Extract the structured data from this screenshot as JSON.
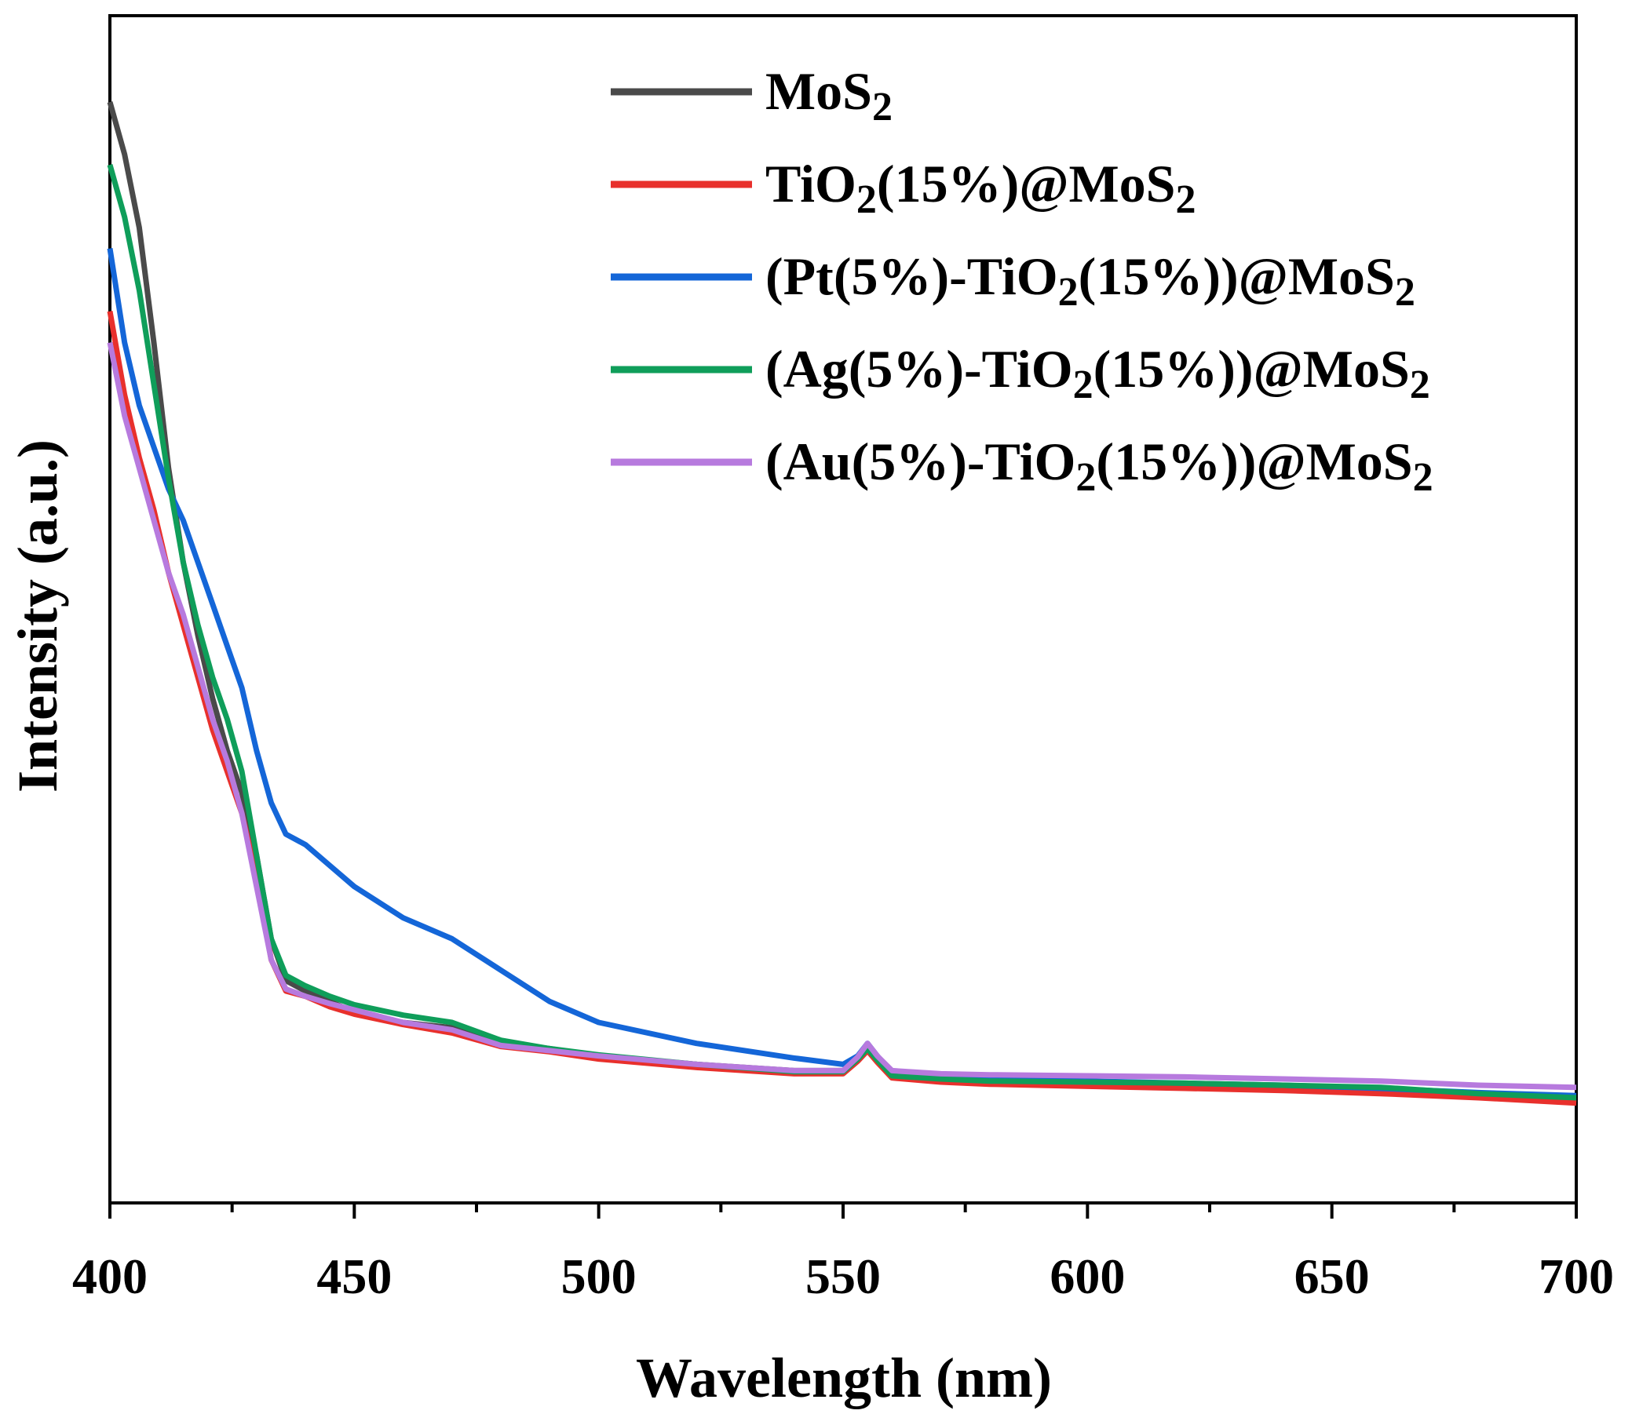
{
  "chart_data": {
    "type": "line",
    "xlabel": "Wavelength (nm)",
    "ylabel": "Intensity (a.u.)",
    "xlim": [
      400,
      700
    ],
    "ylim": [
      0,
      1
    ],
    "x_ticks": [
      400,
      450,
      500,
      550,
      600,
      650,
      700
    ],
    "y_ticks_shown": false,
    "legend_position": "top-right",
    "series": [
      {
        "name": "MoS2",
        "label_parts": [
          [
            "MoS",
            false
          ],
          [
            "2",
            true
          ]
        ],
        "color": "#4a4a4a",
        "x": [
          400,
          403,
          406,
          409,
          412,
          415,
          418,
          421,
          424,
          427,
          430,
          433,
          436,
          440,
          445,
          450,
          460,
          470,
          480,
          490,
          500,
          520,
          540,
          550,
          553,
          555,
          557,
          560,
          570,
          580,
          600,
          620,
          640,
          660,
          680,
          700
        ],
        "y": [
          1.0,
          0.95,
          0.88,
          0.77,
          0.65,
          0.56,
          0.49,
          0.43,
          0.38,
          0.34,
          0.28,
          0.2,
          0.16,
          0.15,
          0.14,
          0.13,
          0.12,
          0.115,
          0.1,
          0.095,
          0.088,
          0.08,
          0.074,
          0.074,
          0.085,
          0.096,
          0.085,
          0.07,
          0.066,
          0.064,
          0.062,
          0.06,
          0.058,
          0.055,
          0.05,
          0.045
        ]
      },
      {
        "name": "TiO2(15%)@MoS2",
        "label_parts": [
          [
            "TiO",
            false
          ],
          [
            "2",
            true
          ],
          [
            "(15%)@MoS",
            false
          ],
          [
            "2",
            true
          ]
        ],
        "color": "#e8302c",
        "x": [
          400,
          403,
          406,
          409,
          412,
          415,
          418,
          421,
          424,
          427,
          430,
          433,
          436,
          440,
          445,
          450,
          460,
          470,
          480,
          490,
          500,
          520,
          540,
          550,
          553,
          555,
          557,
          560,
          570,
          580,
          600,
          620,
          640,
          660,
          680,
          700
        ],
        "y": [
          0.8,
          0.72,
          0.66,
          0.61,
          0.55,
          0.5,
          0.45,
          0.4,
          0.36,
          0.32,
          0.26,
          0.18,
          0.15,
          0.145,
          0.135,
          0.128,
          0.118,
          0.11,
          0.097,
          0.092,
          0.085,
          0.077,
          0.071,
          0.071,
          0.083,
          0.093,
          0.082,
          0.067,
          0.063,
          0.061,
          0.059,
          0.057,
          0.055,
          0.052,
          0.048,
          0.043
        ]
      },
      {
        "name": "(Pt(5%)-TiO2(15%))@MoS2",
        "label_parts": [
          [
            "(Pt(5%)-TiO",
            false
          ],
          [
            "2",
            true
          ],
          [
            "(15%))@MoS",
            false
          ],
          [
            "2",
            true
          ]
        ],
        "color": "#1466d8",
        "x": [
          400,
          403,
          406,
          409,
          412,
          415,
          418,
          421,
          424,
          427,
          430,
          433,
          436,
          440,
          445,
          450,
          460,
          470,
          480,
          490,
          500,
          520,
          540,
          550,
          553,
          555,
          557,
          560,
          570,
          580,
          600,
          620,
          640,
          660,
          680,
          700
        ],
        "y": [
          0.86,
          0.77,
          0.71,
          0.67,
          0.63,
          0.6,
          0.56,
          0.52,
          0.48,
          0.44,
          0.38,
          0.33,
          0.3,
          0.29,
          0.27,
          0.25,
          0.22,
          0.2,
          0.17,
          0.14,
          0.12,
          0.1,
          0.086,
          0.08,
          0.088,
          0.1,
          0.088,
          0.072,
          0.068,
          0.066,
          0.064,
          0.062,
          0.06,
          0.057,
          0.053,
          0.05
        ]
      },
      {
        "name": "(Ag(5%)-TiO2(15%))@MoS2",
        "label_parts": [
          [
            "(Ag(5%)-TiO",
            false
          ],
          [
            "2",
            true
          ],
          [
            "(15%))@MoS",
            false
          ],
          [
            "2",
            true
          ]
        ],
        "color": "#0f9e5a",
        "x": [
          400,
          403,
          406,
          409,
          412,
          415,
          418,
          421,
          424,
          427,
          430,
          433,
          436,
          440,
          445,
          450,
          460,
          470,
          480,
          490,
          500,
          520,
          540,
          550,
          553,
          555,
          557,
          560,
          570,
          580,
          600,
          620,
          640,
          660,
          680,
          700
        ],
        "y": [
          0.94,
          0.89,
          0.82,
          0.73,
          0.64,
          0.56,
          0.5,
          0.45,
          0.41,
          0.36,
          0.28,
          0.2,
          0.165,
          0.155,
          0.145,
          0.137,
          0.127,
          0.12,
          0.103,
          0.095,
          0.089,
          0.08,
          0.073,
          0.073,
          0.085,
          0.095,
          0.084,
          0.069,
          0.066,
          0.064,
          0.063,
          0.062,
          0.06,
          0.058,
          0.052,
          0.048
        ]
      },
      {
        "name": "(Au(5%)-TiO2(15%))@MoS2",
        "label_parts": [
          [
            "(Au(5%)-TiO",
            false
          ],
          [
            "2",
            true
          ],
          [
            "(15%))@MoS",
            false
          ],
          [
            "2",
            true
          ]
        ],
        "color": "#b77ade",
        "x": [
          400,
          403,
          406,
          409,
          412,
          415,
          418,
          421,
          424,
          427,
          430,
          433,
          436,
          440,
          445,
          450,
          460,
          470,
          480,
          490,
          500,
          520,
          540,
          550,
          553,
          555,
          557,
          560,
          570,
          580,
          600,
          620,
          640,
          660,
          680,
          700
        ],
        "y": [
          0.77,
          0.7,
          0.65,
          0.6,
          0.55,
          0.51,
          0.46,
          0.41,
          0.37,
          0.32,
          0.25,
          0.18,
          0.152,
          0.145,
          0.138,
          0.132,
          0.12,
          0.113,
          0.098,
          0.093,
          0.088,
          0.08,
          0.074,
          0.074,
          0.087,
          0.1,
          0.088,
          0.074,
          0.071,
          0.07,
          0.069,
          0.068,
          0.066,
          0.064,
          0.06,
          0.058
        ]
      }
    ]
  }
}
